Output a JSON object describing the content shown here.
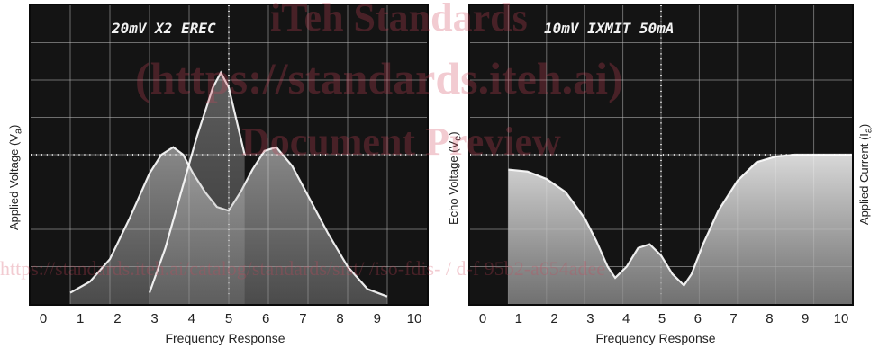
{
  "watermark": {
    "line1": "iTeh Standards",
    "line2": "(https://standards.iteh.ai)",
    "line3": "Document Preview",
    "line4": "https://standards.iteh.ai/catalog/standards/sist/                /iso-fdis-              /    d-f               95b2-a654adee",
    "color": "#d2465a"
  },
  "chart_data": [
    {
      "type": "line",
      "header": "20mV    X2  EREC",
      "xlabel": "Frequency Response",
      "ylabel": "Applied Voltage (V",
      "ylabel_sub": "a",
      "ylabel_close": ")",
      "x_ticks": [
        "0",
        "1",
        "2",
        "3",
        "4",
        "5",
        "6",
        "7",
        "8",
        "9",
        "10"
      ],
      "xlim": [
        0,
        10
      ],
      "ylim": [
        0,
        8
      ],
      "grid": true,
      "series": [
        {
          "x": [
            1.0,
            1.5,
            2.0,
            2.5,
            3.0,
            3.3,
            3.6,
            3.85,
            4.1,
            4.4,
            4.7,
            5.0,
            5.3,
            5.6,
            5.9,
            6.2,
            6.6,
            7.0,
            7.5,
            8.0,
            8.5,
            9.0
          ],
          "y": [
            0.3,
            0.6,
            1.2,
            2.3,
            3.5,
            4.0,
            4.2,
            4.0,
            3.5,
            3.0,
            2.6,
            2.5,
            3.0,
            3.6,
            4.1,
            4.2,
            3.7,
            2.9,
            1.9,
            1.0,
            0.4,
            0.2
          ]
        },
        {
          "x": [
            3.0,
            3.4,
            3.8,
            4.2,
            4.6,
            4.8,
            5.0,
            5.4
          ],
          "y": [
            0.3,
            1.5,
            3.0,
            4.5,
            5.8,
            6.2,
            5.8,
            4.0
          ]
        }
      ]
    },
    {
      "type": "area",
      "header": "10mV   IXMIT  50mA",
      "xlabel": "Frequency Response",
      "ylabel": "Echo Voltage (V",
      "ylabel_sub": "e",
      "ylabel_close": ")",
      "ylabel_right": "Applied Current (I",
      "ylabel_right_sub": "a",
      "ylabel_right_close": ")",
      "x_ticks": [
        "0",
        "1",
        "2",
        "3",
        "4",
        "5",
        "6",
        "7",
        "8",
        "9",
        "10"
      ],
      "xlim": [
        0,
        10
      ],
      "ylim": [
        0,
        8
      ],
      "grid": true,
      "series": [
        {
          "x": [
            1.0,
            1.5,
            2.0,
            2.5,
            3.0,
            3.3,
            3.6,
            3.8,
            4.1,
            4.4,
            4.7,
            5.0,
            5.3,
            5.6,
            5.8,
            6.1,
            6.5,
            7.0,
            7.5,
            8.0,
            8.5,
            9.0,
            9.5,
            10.0
          ],
          "y": [
            3.6,
            3.55,
            3.35,
            3.0,
            2.3,
            1.7,
            1.0,
            0.7,
            1.0,
            1.5,
            1.6,
            1.3,
            0.8,
            0.5,
            0.8,
            1.6,
            2.5,
            3.3,
            3.8,
            3.95,
            4.0,
            4.0,
            4.0,
            4.0
          ]
        }
      ]
    }
  ]
}
